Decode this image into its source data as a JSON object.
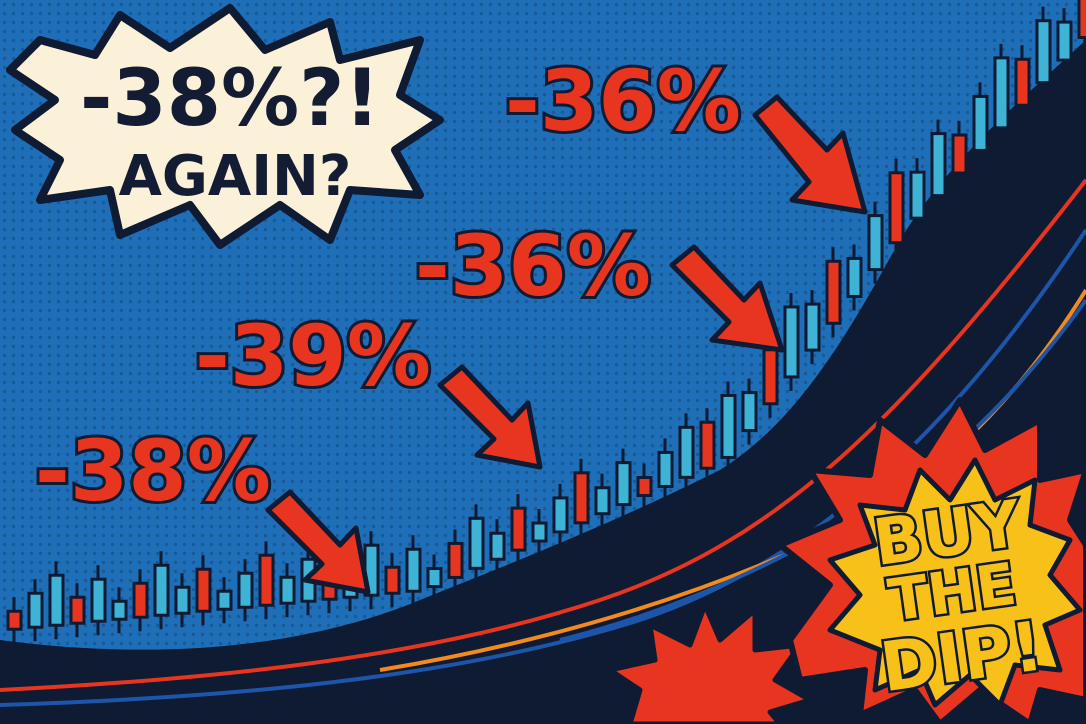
{
  "colors": {
    "background": "#1f6fb8",
    "dark": "#0f1a33",
    "red": "#e8351f",
    "teal": "#3fb3d6",
    "orange": "#f28a1e",
    "yellow": "#f7c11a",
    "cream": "#fbf1d8"
  },
  "speech_bubble": {
    "line1": "-38%?!",
    "line2": "AGAIN?"
  },
  "drops": [
    {
      "label": "-38%"
    },
    {
      "label": "-39%"
    },
    {
      "label": "-36%"
    },
    {
      "label": "-36%"
    }
  ],
  "burst": {
    "line1": "BUY",
    "line2": "THE",
    "line3": "DIP!"
  },
  "icons": [
    "speech-bubble",
    "arrow-down-right",
    "candlestick",
    "starburst"
  ]
}
